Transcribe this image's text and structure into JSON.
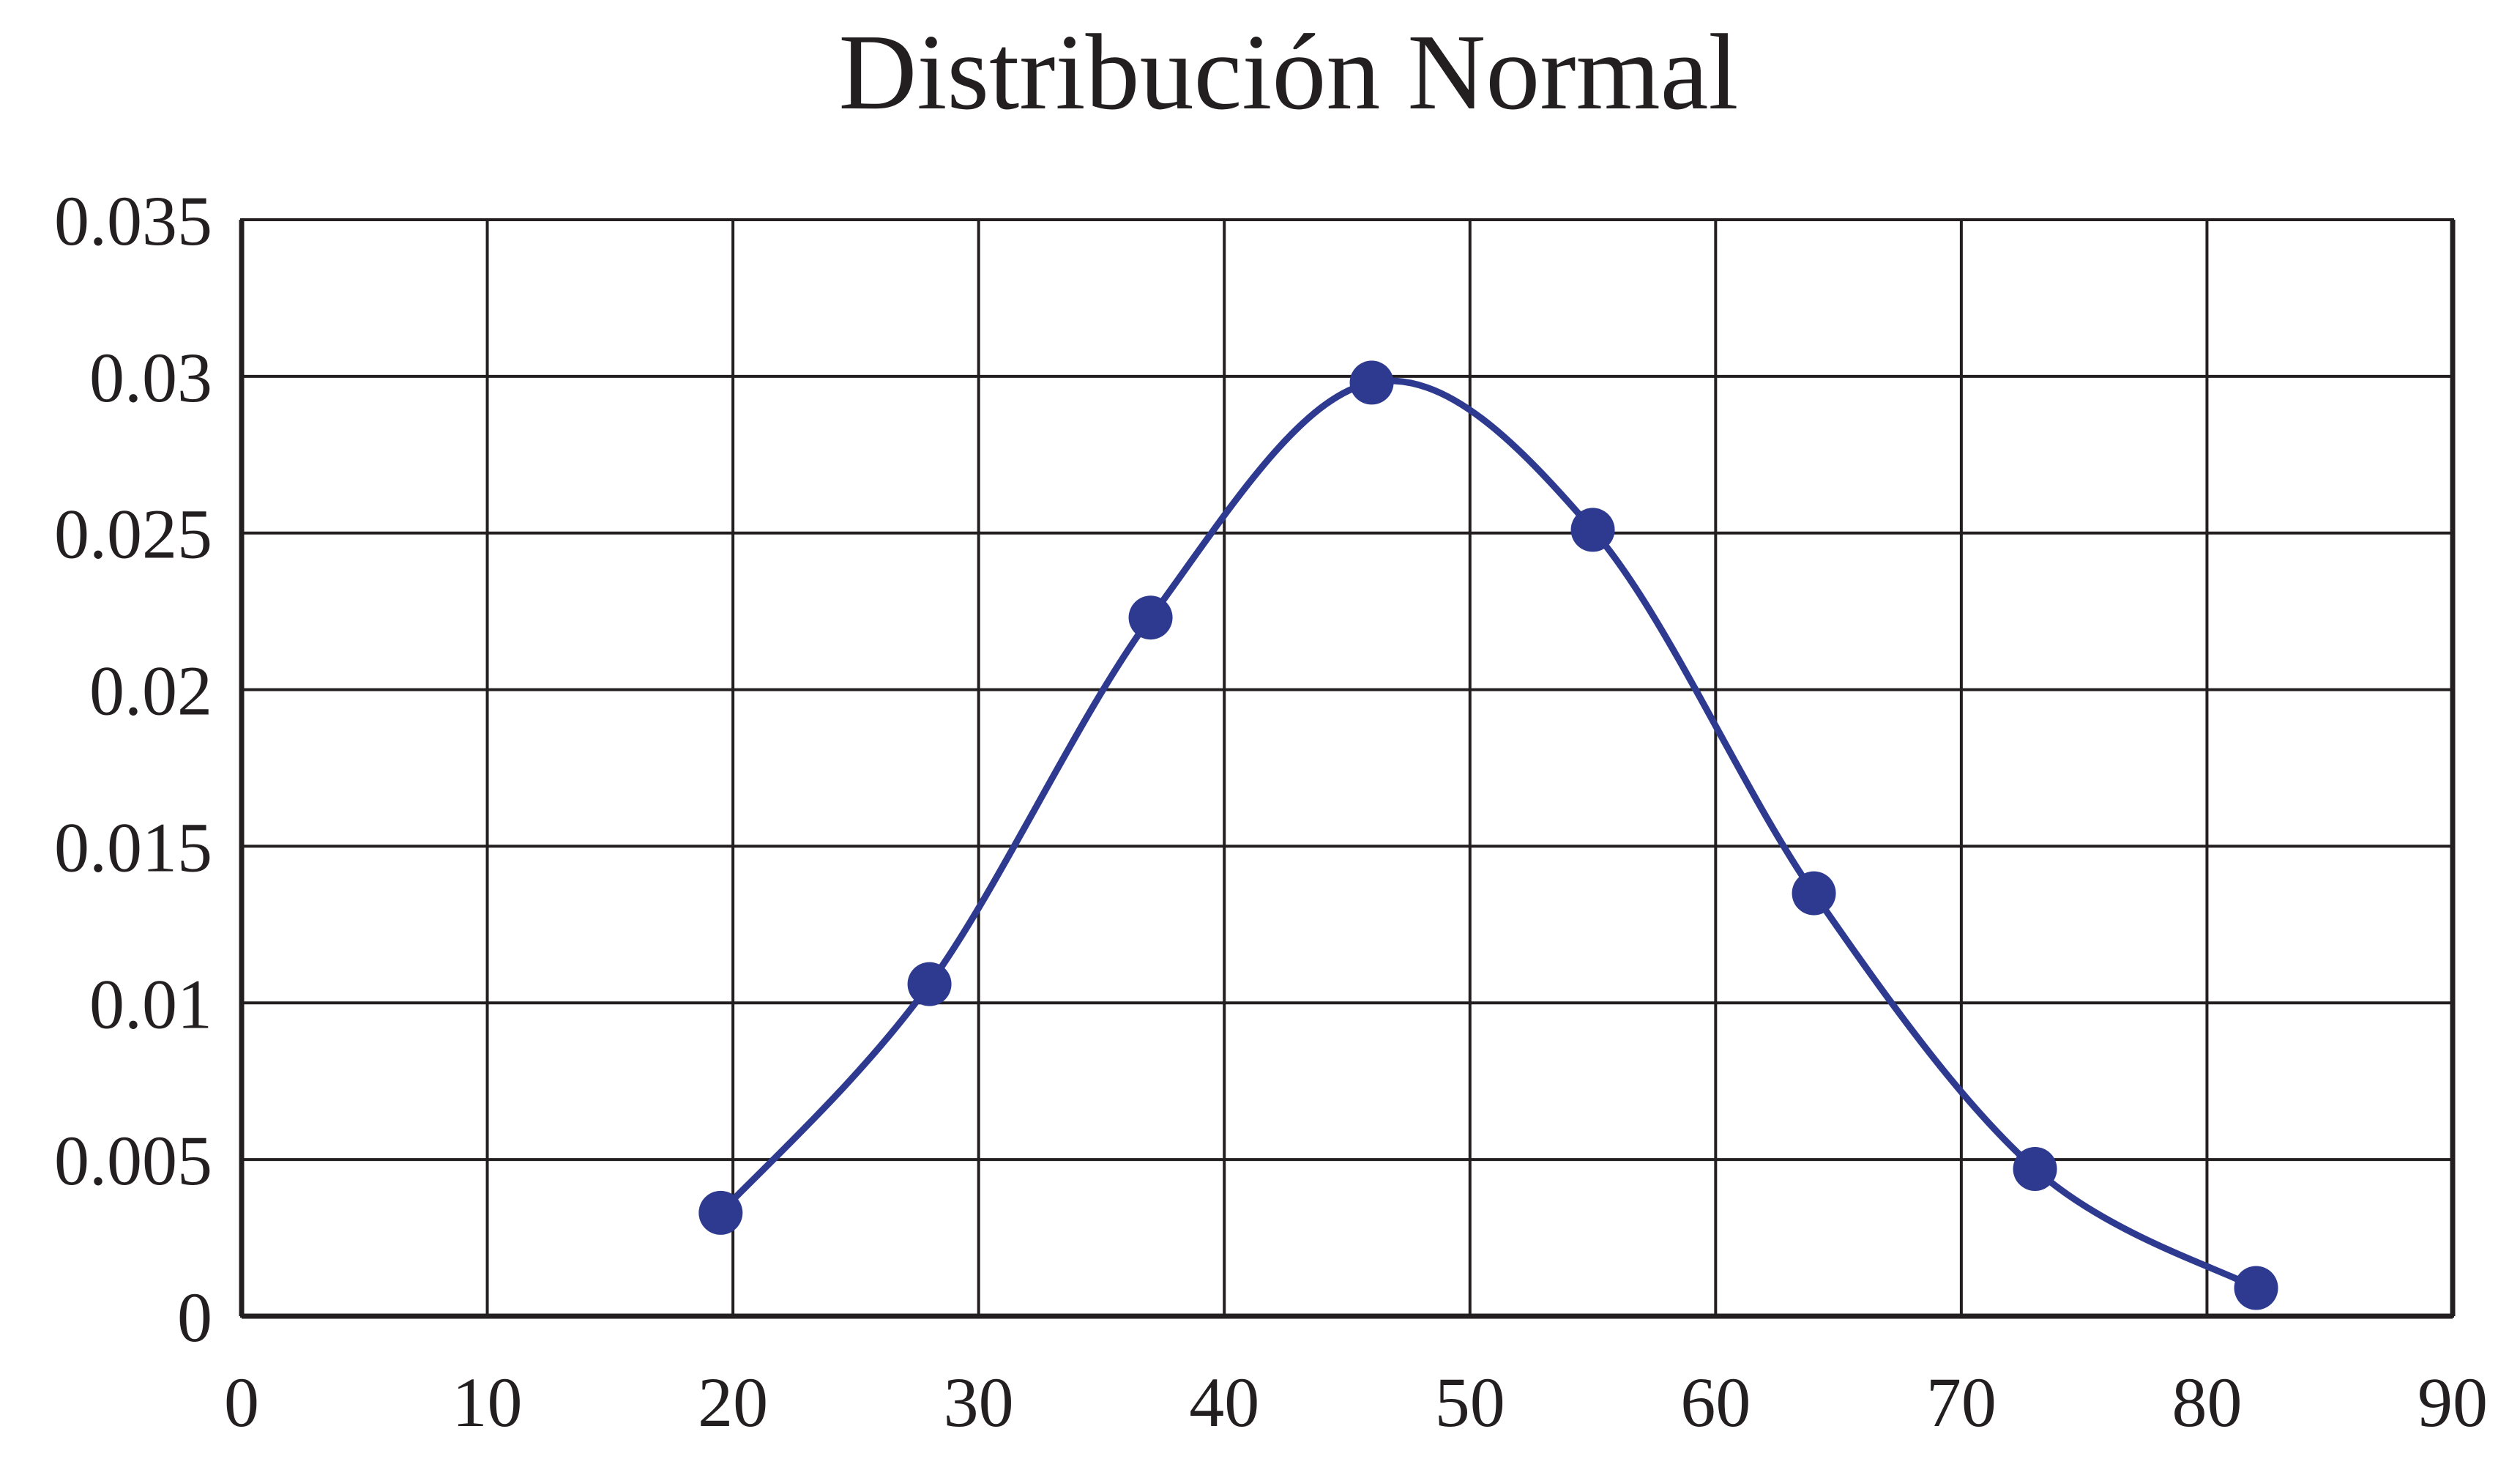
{
  "chart_data": {
    "type": "scatter",
    "title": "Distribución Normal",
    "xlabel": "",
    "ylabel": "",
    "xlim": [
      0,
      90
    ],
    "ylim": [
      0,
      0.035
    ],
    "x_ticks": [
      0,
      10,
      20,
      30,
      40,
      50,
      60,
      70,
      80,
      90
    ],
    "x_tick_labels": [
      "0",
      "10",
      "20",
      "30",
      "40",
      "50",
      "60",
      "70",
      "80",
      "90"
    ],
    "y_ticks": [
      0,
      0.005,
      0.01,
      0.015,
      0.02,
      0.025,
      0.03,
      0.035
    ],
    "y_tick_labels": [
      "0",
      "0.005",
      "0.01",
      "0.015",
      "0.02",
      "0.025",
      "0.03",
      "0.035"
    ],
    "grid": true,
    "legend": "none",
    "smooth_line": true,
    "series": [
      {
        "color": "#2e3a8f",
        "x": [
          19.5,
          28,
          37,
          46,
          55,
          64,
          73,
          82
        ],
        "y": [
          0.0033,
          0.0106,
          0.0223,
          0.0298,
          0.0251,
          0.0135,
          0.0047,
          0.0009
        ]
      }
    ]
  }
}
